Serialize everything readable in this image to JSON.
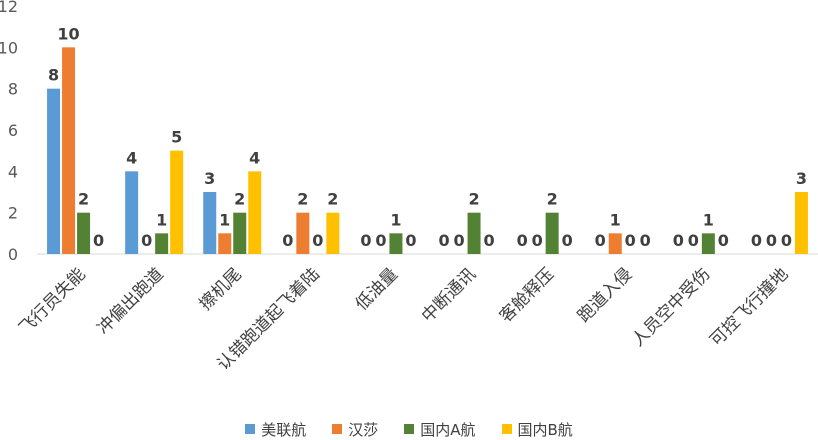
{
  "chart_data": {
    "type": "bar",
    "categories": [
      "飞行员失能",
      "冲偏出跑道",
      "擦机尾",
      "认错跑道起飞着陆",
      "低油量",
      "中断通讯",
      "客舱释压",
      "跑道入侵",
      "人员空中受伤",
      "可控飞行撞地"
    ],
    "series": [
      {
        "name": "美联航",
        "values": [
          8,
          4,
          3,
          0,
          0,
          0,
          0,
          0,
          0,
          0
        ],
        "color": "#5b9bd5"
      },
      {
        "name": "汉莎",
        "values": [
          10,
          0,
          1,
          2,
          0,
          0,
          0,
          1,
          0,
          0
        ],
        "color": "#ed7d31"
      },
      {
        "name": "国内A航",
        "values": [
          2,
          1,
          2,
          0,
          1,
          2,
          2,
          0,
          1,
          0
        ],
        "color": "#548235"
      },
      {
        "name": "国内B航",
        "values": [
          0,
          5,
          4,
          2,
          0,
          0,
          0,
          0,
          0,
          3
        ],
        "color": "#ffc000"
      }
    ],
    "ylim": [
      0,
      12
    ],
    "yticks": [
      0,
      2,
      4,
      6,
      8,
      10,
      12
    ],
    "grid": false,
    "data_labels": true,
    "legend_position": "bottom"
  }
}
